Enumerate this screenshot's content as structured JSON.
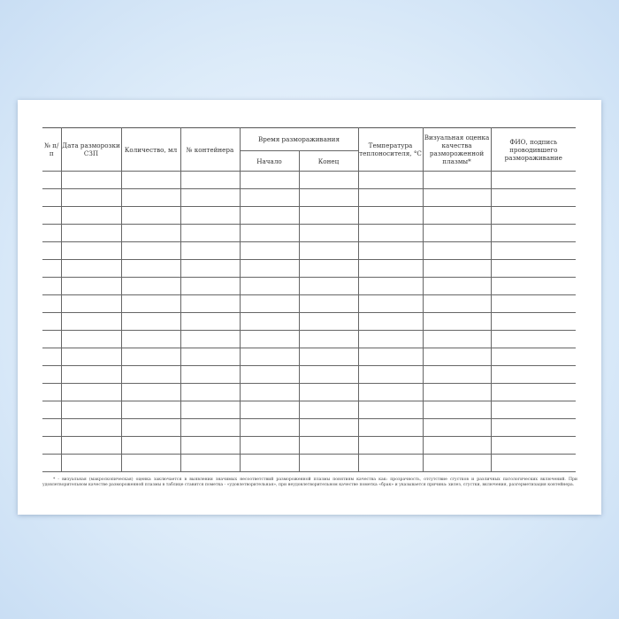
{
  "table": {
    "headers": [
      "№ п/п",
      "Дата разморозки СЗП",
      "Количество, мл",
      "№ контейнера",
      "Время размораживания",
      "Температура теплоносителя, °С",
      "Визуальная оценка качества размороженной плазмы*",
      "ФИО, подпись проводившего размораживание"
    ],
    "subheaders": [
      "Начало",
      "Конец"
    ],
    "row_count": 17
  },
  "footnote": "* - визуальная (макроскопическая) оценка заключается в выявлении значимых несоответствий размороженной плазмы понятиям качества как: прозрачность, отсутствие сгустков и различных патологических включений. При удовлетворительном качестве размороженной плазмы в таблице ставится пометка - «удовлетворительная», при неудовлетворительном качестве пометка «брак» и указывается причина: хилез, сгустки, включения, разгерметизация контейнера."
}
